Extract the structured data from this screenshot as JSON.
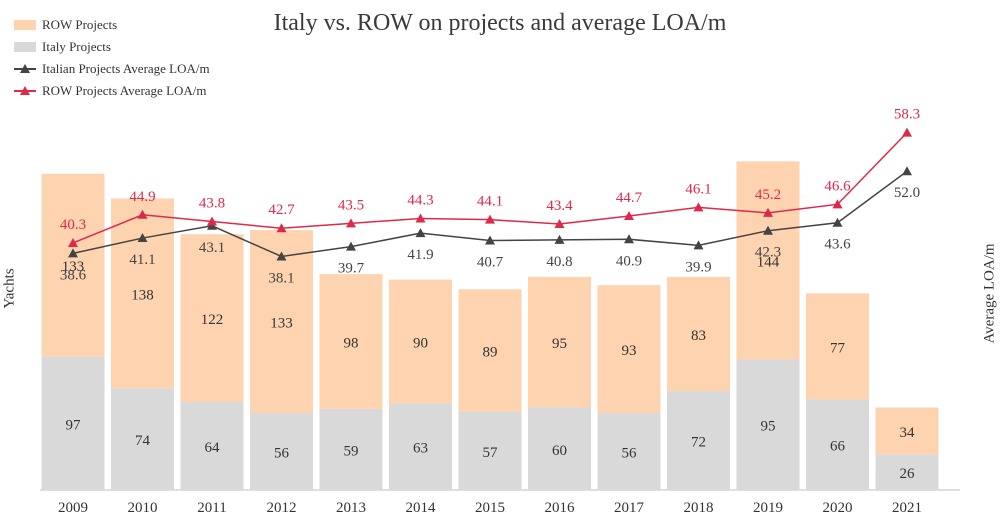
{
  "chart_data": {
    "type": "bar+line",
    "title": "Italy vs. ROW on projects and average LOA/m",
    "categories": [
      "2009",
      "2010",
      "2011",
      "2012",
      "2013",
      "2014",
      "2015",
      "2016",
      "2017",
      "2018",
      "2019",
      "2020",
      "2021"
    ],
    "series": [
      {
        "name": "ROW Projects",
        "kind": "stacked-bar",
        "color": "#fdd3b0",
        "values": [
          133,
          138,
          122,
          133,
          98,
          90,
          89,
          95,
          93,
          83,
          144,
          77,
          34
        ]
      },
      {
        "name": "Italy Projects",
        "kind": "stacked-bar",
        "color": "#d9d9d9",
        "values": [
          97,
          74,
          64,
          56,
          59,
          63,
          57,
          60,
          56,
          72,
          95,
          66,
          26
        ]
      },
      {
        "name": "Italian Projects Average LOA/m",
        "kind": "line",
        "color": "#444444",
        "values": [
          38.6,
          41.1,
          43.1,
          38.1,
          39.7,
          41.9,
          40.7,
          40.8,
          40.9,
          39.9,
          42.3,
          43.6,
          52.0
        ]
      },
      {
        "name": "ROW Projects Average LOA/m",
        "kind": "line",
        "color": "#e0284a",
        "values": [
          40.3,
          44.9,
          43.8,
          42.7,
          43.5,
          44.3,
          44.1,
          43.4,
          44.7,
          46.1,
          45.2,
          46.6,
          58.3
        ]
      }
    ],
    "ylabel_left": "Yachts",
    "ylabel_right": "Average LOA/m",
    "ylim_left": [
      0,
      240
    ],
    "ylim_right": [
      0,
      75
    ],
    "grid": false,
    "legend_position": "top-left"
  }
}
